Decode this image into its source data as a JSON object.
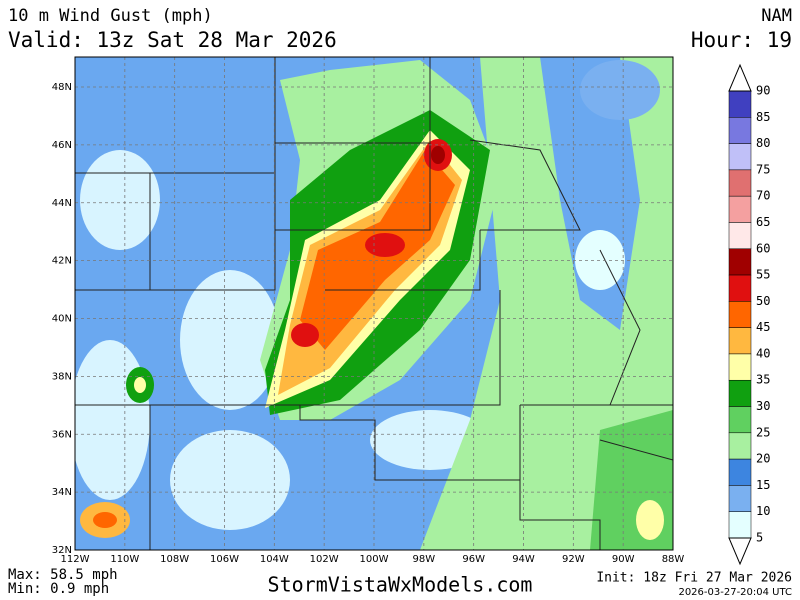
{
  "header": {
    "title": "10 m Wind Gust (mph)",
    "model": "NAM",
    "valid": "Valid: 13z Sat 28 Mar 2026",
    "hour": "Hour: 19"
  },
  "lat_labels": [
    "48N",
    "46N",
    "44N",
    "42N",
    "40N",
    "38N",
    "36N",
    "34N",
    "32N"
  ],
  "lon_labels": [
    "112W",
    "110W",
    "108W",
    "106W",
    "104W",
    "102W",
    "100W",
    "98W",
    "96W",
    "94W",
    "92W",
    "90W",
    "88W"
  ],
  "colorbar": {
    "labels": [
      90,
      85,
      80,
      75,
      70,
      65,
      60,
      55,
      50,
      45,
      40,
      35,
      30,
      25,
      20,
      15,
      10,
      5
    ],
    "colors": [
      "#4040c0",
      "#7878e0",
      "#c0c0f8",
      "#e07070",
      "#f4a0a0",
      "#ffe8e8",
      "#a00000",
      "#e01010",
      "#ff6600",
      "#ffb840",
      "#ffffa8",
      "#10a010",
      "#60d060",
      "#a8f0a0",
      "#3d85e0",
      "#7ab0f0",
      "#e4ffff"
    ]
  },
  "footer": {
    "max": "Max: 58.5 mph",
    "min": "Min: 0.9 mph",
    "site": "StormVistaWxModels.com",
    "init": "Init: 18z Fri 27 Mar 2026",
    "stamp": "2026-03-27-20:04 UTC"
  }
}
